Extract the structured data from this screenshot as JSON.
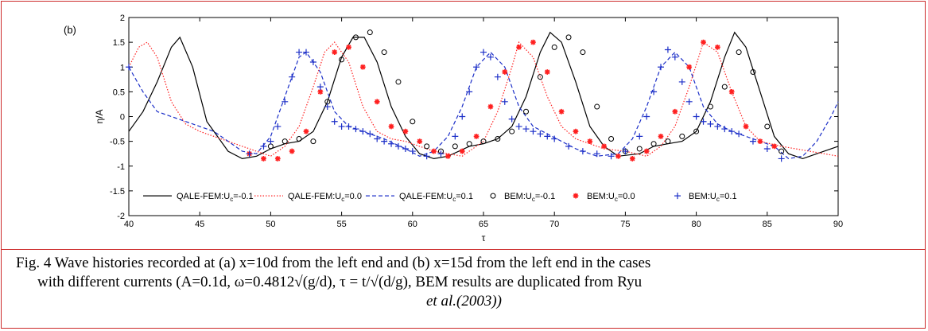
{
  "panel_label": "(b)",
  "chart_data": {
    "type": "line",
    "title": "",
    "xlabel": "τ",
    "ylabel": "η/A",
    "xlim": [
      40,
      90
    ],
    "ylim": [
      -2,
      2
    ],
    "xticks": [
      "40",
      "45",
      "50",
      "55",
      "60",
      "65",
      "70",
      "75",
      "80",
      "85",
      "90"
    ],
    "yticks": [
      "-2",
      "-1.5",
      "-1",
      "-0.5",
      "0",
      "0.5",
      "1",
      "1.5",
      "2"
    ],
    "grid": false,
    "legend_position": "bottom",
    "series": [
      {
        "name": "QALE-FEM:U",
        "sub": "c",
        "tail": "=-0.1",
        "color": "#000000",
        "style": "solid",
        "x": [
          40,
          41,
          42,
          43,
          43.6,
          44.5,
          45.5,
          47,
          48,
          49,
          50,
          51,
          52,
          53,
          54,
          55,
          55.8,
          56.6,
          57.5,
          58.5,
          59.5,
          60.5,
          61.5,
          62.5,
          64,
          65,
          66,
          67,
          68,
          69,
          69.7,
          70.5,
          71.5,
          72.5,
          73.5,
          74.5,
          76,
          77,
          78,
          79,
          80,
          81,
          82,
          82.7,
          83.5,
          84.5,
          85.5,
          86.5,
          87.5,
          88.5,
          90
        ],
        "y": [
          -0.3,
          0.1,
          0.7,
          1.4,
          1.6,
          1.0,
          -0.1,
          -0.7,
          -0.85,
          -0.8,
          -0.65,
          -0.55,
          -0.5,
          -0.3,
          0.3,
          1.2,
          1.6,
          1.6,
          1.1,
          0.2,
          -0.4,
          -0.75,
          -0.85,
          -0.8,
          -0.6,
          -0.55,
          -0.45,
          -0.2,
          0.4,
          1.3,
          1.7,
          1.5,
          0.7,
          -0.2,
          -0.6,
          -0.8,
          -0.75,
          -0.6,
          -0.55,
          -0.5,
          -0.3,
          0.3,
          1.2,
          1.7,
          1.4,
          0.5,
          -0.4,
          -0.75,
          -0.85,
          -0.75,
          -0.6
        ]
      },
      {
        "name": "QALE-FEM:U",
        "sub": "c",
        "tail": "=0.0",
        "color": "#ff2020",
        "style": "dotted",
        "x": [
          40,
          40.7,
          41.3,
          42,
          43,
          44,
          45,
          46,
          47,
          48,
          49,
          50,
          51,
          52,
          53,
          53.8,
          54.5,
          55.5,
          56.5,
          57.5,
          58.5,
          59.5,
          60.5,
          61.5,
          62.5,
          63.5,
          65,
          66,
          67,
          67.5,
          68.5,
          69.5,
          70.5,
          71.5,
          72.5,
          73.5,
          75,
          76.5,
          77.5,
          78.5,
          79.5,
          80.5,
          81.5,
          82.5,
          83.5,
          84.5,
          86,
          87,
          88,
          89,
          90
        ],
        "y": [
          1.0,
          1.4,
          1.5,
          1.2,
          0.3,
          -0.15,
          -0.3,
          -0.4,
          -0.5,
          -0.6,
          -0.7,
          -0.8,
          -0.6,
          -0.2,
          0.6,
          1.3,
          1.5,
          1.1,
          0.2,
          -0.3,
          -0.45,
          -0.5,
          -0.6,
          -0.7,
          -0.75,
          -0.8,
          -0.5,
          0.1,
          1.0,
          1.5,
          1.2,
          0.4,
          -0.2,
          -0.45,
          -0.55,
          -0.65,
          -0.7,
          -0.8,
          -0.6,
          -0.2,
          0.6,
          1.5,
          1.3,
          0.5,
          -0.2,
          -0.5,
          -0.6,
          -0.65,
          -0.7,
          -0.75,
          -0.8
        ]
      },
      {
        "name": "QALE-FEM:U",
        "sub": "c",
        "tail": "=0.1",
        "color": "#1c2fc8",
        "style": "dashed",
        "x": [
          40,
          41,
          42,
          43,
          44,
          45,
          46,
          47,
          48,
          49,
          50,
          51,
          52,
          52.5,
          53.5,
          54.5,
          55.5,
          56.5,
          58,
          59.5,
          60.5,
          61.5,
          62.5,
          63.5,
          64.5,
          65.5,
          66.5,
          67.5,
          68.5,
          69.5,
          70.5,
          71.5,
          73,
          74.5,
          75.5,
          76.5,
          77.5,
          78.5,
          79.5,
          80.5,
          81.5,
          82.5,
          84,
          85.5,
          86.5,
          87.5,
          88.5,
          89.5,
          90
        ],
        "y": [
          1.0,
          0.5,
          0.1,
          0.0,
          -0.1,
          -0.2,
          -0.3,
          -0.5,
          -0.7,
          -0.75,
          -0.4,
          0.4,
          1.2,
          1.3,
          0.9,
          0.1,
          -0.2,
          -0.3,
          -0.45,
          -0.65,
          -0.8,
          -0.7,
          -0.4,
          0.2,
          1.0,
          1.3,
          1.0,
          0.2,
          -0.2,
          -0.35,
          -0.5,
          -0.65,
          -0.8,
          -0.75,
          -0.45,
          0.2,
          1.0,
          1.3,
          1.0,
          0.2,
          -0.15,
          -0.3,
          -0.45,
          -0.6,
          -0.85,
          -0.8,
          -0.5,
          0.0,
          0.3
        ]
      },
      {
        "name": "BEM:U",
        "sub": "c",
        "tail": "=-0.1",
        "color": "#000000",
        "marker": "circle",
        "x": [
          50,
          51,
          52,
          53,
          54,
          55,
          56,
          57,
          58,
          59,
          60,
          61,
          62,
          63,
          64,
          65,
          66,
          67,
          68,
          69,
          70,
          71,
          72,
          73,
          74,
          75,
          76,
          77,
          78,
          79,
          80,
          81,
          82,
          83,
          84,
          85,
          86
        ],
        "y": [
          -0.6,
          -0.5,
          -0.45,
          -0.5,
          0.3,
          1.15,
          1.6,
          1.7,
          1.3,
          0.7,
          -0.1,
          -0.6,
          -0.7,
          -0.6,
          -0.55,
          -0.5,
          -0.45,
          -0.3,
          0.1,
          0.8,
          1.4,
          1.6,
          1.3,
          0.2,
          -0.45,
          -0.7,
          -0.65,
          -0.55,
          -0.5,
          -0.4,
          -0.3,
          0.2,
          0.6,
          1.3,
          0.9,
          -0.2,
          -0.7
        ]
      },
      {
        "name": "BEM:U",
        "sub": "c",
        "tail": "=0.0",
        "color": "#ff2020",
        "marker": "asterisk",
        "x": [
          48.5,
          49.5,
          50.5,
          51.5,
          52.5,
          53.5,
          54.5,
          55.5,
          56.5,
          57.5,
          58.5,
          59.5,
          60.5,
          61.5,
          62.5,
          63.5,
          64.5,
          65.5,
          66.5,
          67.5,
          68.5,
          69.5,
          70.5,
          71.5,
          72.5,
          73.5,
          74.5,
          75.5,
          76.5,
          77.5,
          78.5,
          79.5,
          80.5,
          81.5,
          82.5,
          83.5,
          84.5,
          85.5
        ],
        "y": [
          -0.75,
          -0.85,
          -0.85,
          -0.7,
          -0.3,
          0.5,
          1.3,
          1.4,
          1.0,
          0.3,
          -0.2,
          -0.3,
          -0.5,
          -0.7,
          -0.8,
          -0.7,
          -0.4,
          0.2,
          0.9,
          1.4,
          1.5,
          0.9,
          0.1,
          -0.3,
          -0.5,
          -0.6,
          -0.8,
          -0.85,
          -0.7,
          -0.4,
          0.1,
          1.0,
          1.5,
          1.4,
          0.5,
          -0.2,
          -0.5,
          -0.6
        ]
      },
      {
        "name": "BEM:U",
        "sub": "c",
        "tail": "=0.1",
        "color": "#1c2fc8",
        "marker": "plus",
        "x": [
          40,
          48.5,
          49.5,
          50,
          50.5,
          51,
          51.5,
          52,
          52.5,
          53,
          53.5,
          54,
          54.5,
          55,
          55.5,
          56,
          56.5,
          57,
          57.5,
          58,
          58.5,
          59,
          59.5,
          60,
          61,
          62,
          63,
          63.5,
          64,
          64.5,
          65,
          65.5,
          66,
          66.5,
          67,
          67.5,
          68,
          68.5,
          69,
          69.5,
          70,
          71,
          72,
          73,
          74,
          75,
          76,
          76.5,
          77,
          77.5,
          78,
          78.5,
          79,
          79.5,
          80,
          80.5,
          81,
          81.5,
          82,
          82.5,
          83,
          84,
          85,
          86
        ],
        "y": [
          1.0,
          -0.75,
          -0.6,
          -0.5,
          -0.2,
          0.3,
          0.8,
          1.3,
          1.3,
          1.1,
          0.6,
          0.2,
          -0.1,
          -0.2,
          -0.2,
          -0.25,
          -0.3,
          -0.35,
          -0.45,
          -0.5,
          -0.55,
          -0.6,
          -0.65,
          -0.7,
          -0.8,
          -0.75,
          -0.4,
          0.0,
          0.5,
          1.0,
          1.3,
          1.2,
          0.8,
          0.3,
          -0.05,
          -0.2,
          -0.25,
          -0.3,
          -0.35,
          -0.4,
          -0.45,
          -0.6,
          -0.7,
          -0.75,
          -0.8,
          -0.7,
          -0.4,
          0.0,
          0.5,
          1.0,
          1.35,
          1.2,
          0.7,
          0.3,
          0.0,
          -0.1,
          -0.15,
          -0.2,
          -0.25,
          -0.3,
          -0.35,
          -0.5,
          -0.65,
          -0.85
        ]
      }
    ]
  },
  "caption": {
    "line1": "Fig. 4 Wave histories recorded at (a) x=10d from the left end and (b) x=15d from the left end in the cases",
    "line2": "with different currents (A=0.1d, ω=0.4812√(g/d), τ = t/√(d/g), BEM results are duplicated from Ryu",
    "line3": "et al.(2003))"
  }
}
